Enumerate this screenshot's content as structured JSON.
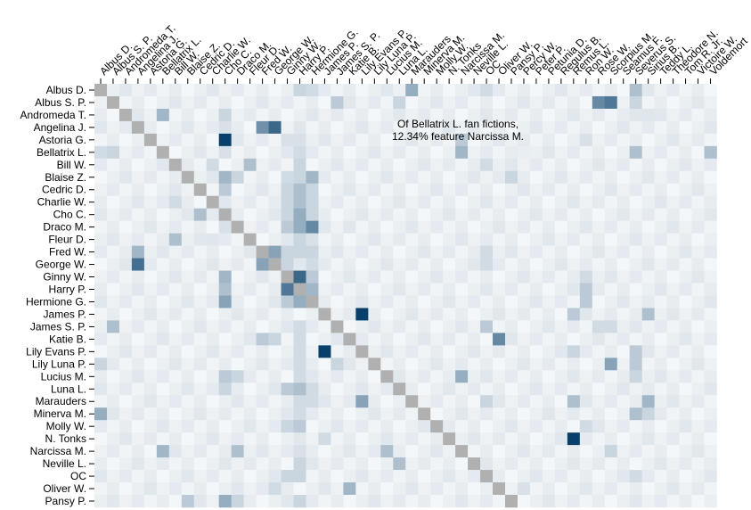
{
  "chart_data": {
    "type": "heatmap",
    "title": "",
    "xlabel": "",
    "ylabel": "",
    "categories_x": [
      "Albus D.",
      "Albus S. P.",
      "Andromeda T.",
      "Angelina J.",
      "Astoria G.",
      "Bellatrix L.",
      "Bill W.",
      "Blaise Z.",
      "Cedric D.",
      "Charlie W.",
      "Cho C.",
      "Draco M.",
      "Fleur D.",
      "Fred W.",
      "George W.",
      "Ginny W.",
      "Harry P.",
      "Hermione G.",
      "James P.",
      "James S. P.",
      "Katie B.",
      "Lily Evans P.",
      "Lily Luna P.",
      "Lucius M.",
      "Luna L.",
      "Marauders",
      "Minerva M.",
      "Molly W.",
      "N. Tonks",
      "Narcissa M.",
      "Neville L.",
      "OC",
      "Oliver W.",
      "Pansy P.",
      "Percy W.",
      "Peter P.",
      "Petunia D.",
      "Regulus B.",
      "Remus L.",
      "Ron W.",
      "Rose W.",
      "Scorpius M.",
      "Seamus F.",
      "Severus S.",
      "Sirius B.",
      "Teddy L.",
      "Theodore N.",
      "Tom R. Jr.",
      "Victoire W.",
      "Voldemort"
    ],
    "categories_y": [
      "Albus D.",
      "Albus S. P.",
      "Andromeda T.",
      "Angelina J.",
      "Astoria G.",
      "Bellatrix L.",
      "Bill W.",
      "Blaise Z.",
      "Cedric D.",
      "Charlie W.",
      "Cho C.",
      "Draco M.",
      "Fleur D.",
      "Fred W.",
      "George W.",
      "Ginny W.",
      "Harry P.",
      "Hermione G.",
      "James P.",
      "James S. P.",
      "Katie B.",
      "Lily Evans P.",
      "Lily Luna P.",
      "Lucius M.",
      "Luna L.",
      "Marauders",
      "Minerva M.",
      "Molly W.",
      "N. Tonks",
      "Narcissa M.",
      "Neville L.",
      "OC",
      "Oliver W.",
      "Pansy P."
    ],
    "value_unit": "percent of row character's fan fictions featuring column character",
    "diagonal_color": "#b0b0b0",
    "color_scale": {
      "low": "#ffffff",
      "high": "#08406b",
      "max": 40
    },
    "background_value": 0.8,
    "cells": [
      [
        0,
        16,
        6
      ],
      [
        0,
        17,
        5
      ],
      [
        0,
        25,
        14
      ],
      [
        0,
        31,
        5
      ],
      [
        0,
        43,
        10
      ],
      [
        1,
        19,
        8
      ],
      [
        1,
        24,
        6
      ],
      [
        1,
        40,
        22
      ],
      [
        1,
        41,
        26
      ],
      [
        1,
        43,
        6
      ],
      [
        2,
        5,
        12
      ],
      [
        2,
        10,
        6
      ],
      [
        2,
        43,
        3
      ],
      [
        2,
        44,
        3
      ],
      [
        3,
        13,
        20
      ],
      [
        3,
        14,
        30
      ],
      [
        3,
        10,
        4
      ],
      [
        3,
        16,
        3
      ],
      [
        4,
        10,
        40
      ],
      [
        4,
        16,
        4
      ],
      [
        4,
        15,
        4
      ],
      [
        4,
        29,
        8
      ],
      [
        4,
        39,
        4
      ],
      [
        5,
        0,
        5
      ],
      [
        5,
        1,
        6
      ],
      [
        5,
        10,
        4
      ],
      [
        5,
        16,
        5
      ],
      [
        5,
        29,
        12
      ],
      [
        5,
        34,
        2
      ],
      [
        5,
        43,
        10
      ],
      [
        5,
        49,
        10
      ],
      [
        6,
        9,
        5
      ],
      [
        6,
        12,
        10
      ],
      [
        6,
        16,
        6
      ],
      [
        6,
        31,
        5
      ],
      [
        7,
        10,
        12
      ],
      [
        7,
        11,
        6
      ],
      [
        7,
        15,
        5
      ],
      [
        7,
        16,
        6
      ],
      [
        7,
        17,
        12
      ],
      [
        7,
        33,
        6
      ],
      [
        8,
        10,
        8
      ],
      [
        8,
        15,
        6
      ],
      [
        8,
        16,
        10
      ],
      [
        8,
        17,
        6
      ],
      [
        9,
        6,
        5
      ],
      [
        9,
        15,
        6
      ],
      [
        9,
        16,
        10
      ],
      [
        9,
        17,
        6
      ],
      [
        10,
        8,
        10
      ],
      [
        10,
        15,
        6
      ],
      [
        10,
        16,
        14
      ],
      [
        10,
        17,
        6
      ],
      [
        11,
        10,
        4
      ],
      [
        11,
        15,
        8
      ],
      [
        11,
        16,
        14
      ],
      [
        11,
        17,
        22
      ],
      [
        11,
        20,
        3
      ],
      [
        12,
        6,
        10
      ],
      [
        12,
        9,
        3
      ],
      [
        12,
        16,
        6
      ],
      [
        12,
        17,
        4
      ],
      [
        13,
        3,
        12
      ],
      [
        13,
        14,
        16
      ],
      [
        13,
        15,
        6
      ],
      [
        13,
        16,
        6
      ],
      [
        13,
        17,
        6
      ],
      [
        13,
        31,
        5
      ],
      [
        14,
        3,
        28
      ],
      [
        14,
        13,
        16
      ],
      [
        14,
        15,
        6
      ],
      [
        14,
        17,
        5
      ],
      [
        14,
        31,
        5
      ],
      [
        15,
        10,
        12
      ],
      [
        15,
        16,
        30
      ],
      [
        15,
        17,
        8
      ],
      [
        15,
        39,
        5
      ],
      [
        16,
        10,
        10
      ],
      [
        16,
        15,
        26
      ],
      [
        16,
        17,
        12
      ],
      [
        16,
        39,
        8
      ],
      [
        17,
        10,
        16
      ],
      [
        17,
        15,
        8
      ],
      [
        17,
        16,
        14
      ],
      [
        17,
        39,
        8
      ],
      [
        18,
        21,
        40
      ],
      [
        18,
        38,
        8
      ],
      [
        18,
        44,
        10
      ],
      [
        19,
        1,
        10
      ],
      [
        19,
        16,
        5
      ],
      [
        19,
        31,
        8
      ],
      [
        19,
        40,
        5
      ],
      [
        19,
        41,
        5
      ],
      [
        20,
        13,
        8
      ],
      [
        20,
        14,
        6
      ],
      [
        20,
        16,
        5
      ],
      [
        20,
        32,
        22
      ],
      [
        21,
        16,
        5
      ],
      [
        21,
        18,
        40
      ],
      [
        21,
        38,
        6
      ],
      [
        21,
        43,
        8
      ],
      [
        22,
        0,
        6
      ],
      [
        22,
        16,
        5
      ],
      [
        22,
        19,
        6
      ],
      [
        22,
        41,
        16
      ],
      [
        22,
        43,
        8
      ],
      [
        23,
        10,
        8
      ],
      [
        23,
        11,
        6
      ],
      [
        23,
        16,
        5
      ],
      [
        23,
        29,
        14
      ],
      [
        23,
        43,
        6
      ],
      [
        24,
        10,
        6
      ],
      [
        24,
        15,
        8
      ],
      [
        24,
        16,
        10
      ],
      [
        24,
        17,
        5
      ],
      [
        25,
        16,
        5
      ],
      [
        25,
        17,
        5
      ],
      [
        25,
        21,
        16
      ],
      [
        25,
        31,
        6
      ],
      [
        25,
        38,
        10
      ],
      [
        25,
        44,
        12
      ],
      [
        26,
        0,
        14
      ],
      [
        26,
        16,
        5
      ],
      [
        26,
        43,
        10
      ],
      [
        26,
        44,
        6
      ],
      [
        27,
        15,
        6
      ],
      [
        27,
        16,
        8
      ],
      [
        27,
        39,
        5
      ],
      [
        28,
        18,
        5
      ],
      [
        28,
        38,
        40
      ],
      [
        29,
        5,
        12
      ],
      [
        29,
        11,
        10
      ],
      [
        29,
        16,
        4
      ],
      [
        29,
        23,
        10
      ],
      [
        29,
        41,
        6
      ],
      [
        30,
        16,
        6
      ],
      [
        30,
        24,
        10
      ],
      [
        31,
        15,
        6
      ],
      [
        31,
        16,
        6
      ],
      [
        31,
        43,
        5
      ],
      [
        32,
        14,
        5
      ],
      [
        32,
        20,
        12
      ],
      [
        32,
        34,
        4
      ],
      [
        33,
        7,
        8
      ],
      [
        33,
        10,
        14
      ],
      [
        33,
        11,
        6
      ],
      [
        33,
        16,
        6
      ]
    ]
  },
  "annotation": {
    "line1": "Of Bellatrix L. fan fictions,",
    "line2": "12.34% feature Narcissa M."
  }
}
